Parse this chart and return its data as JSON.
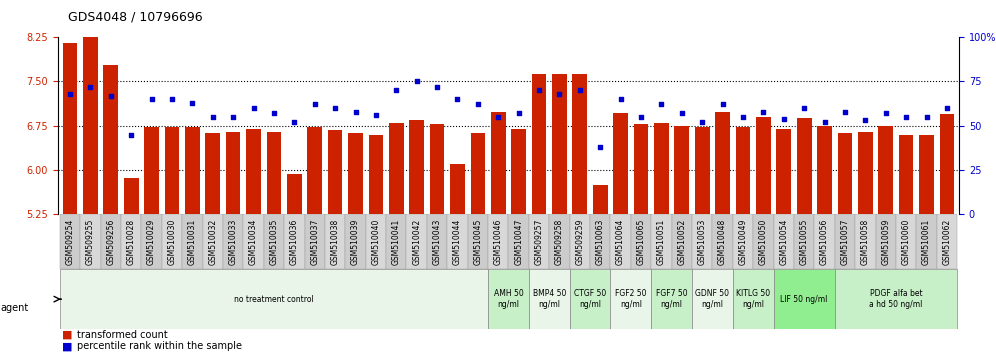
{
  "title": "GDS4048 / 10796696",
  "ylim_left": [
    5.25,
    8.25
  ],
  "ylim_right": [
    0,
    100
  ],
  "yticks_left": [
    5.25,
    6.0,
    6.75,
    7.5,
    8.25
  ],
  "yticks_right": [
    0,
    25,
    50,
    75,
    100
  ],
  "bar_color": "#CC2200",
  "dot_color": "#0000CC",
  "samples": [
    "GSM509254",
    "GSM509255",
    "GSM509256",
    "GSM510028",
    "GSM510029",
    "GSM510030",
    "GSM510031",
    "GSM510032",
    "GSM510033",
    "GSM510034",
    "GSM510035",
    "GSM510036",
    "GSM510037",
    "GSM510038",
    "GSM510039",
    "GSM510040",
    "GSM510041",
    "GSM510042",
    "GSM510043",
    "GSM510044",
    "GSM510045",
    "GSM510046",
    "GSM510047",
    "GSM509257",
    "GSM509258",
    "GSM509259",
    "GSM510063",
    "GSM510064",
    "GSM510065",
    "GSM510051",
    "GSM510052",
    "GSM510053",
    "GSM510048",
    "GSM510049",
    "GSM510050",
    "GSM510054",
    "GSM510055",
    "GSM510056",
    "GSM510057",
    "GSM510058",
    "GSM510059",
    "GSM510060",
    "GSM510061",
    "GSM510062"
  ],
  "bar_values": [
    8.15,
    8.35,
    7.78,
    5.86,
    6.73,
    6.73,
    6.72,
    6.62,
    6.65,
    6.7,
    6.65,
    5.93,
    6.72,
    6.68,
    6.62,
    6.6,
    6.8,
    6.85,
    6.78,
    6.1,
    6.63,
    6.98,
    6.7,
    7.62,
    7.62,
    7.62,
    5.75,
    6.97,
    6.78,
    6.8,
    6.75,
    6.72,
    6.98,
    6.72,
    6.9,
    6.7,
    6.88,
    6.75,
    6.62,
    6.65,
    6.75,
    6.6,
    6.6,
    6.95
  ],
  "dot_values": [
    68,
    72,
    67,
    45,
    65,
    65,
    63,
    55,
    55,
    60,
    57,
    52,
    62,
    60,
    58,
    56,
    70,
    75,
    72,
    65,
    62,
    55,
    57,
    70,
    68,
    70,
    38,
    65,
    55,
    62,
    57,
    52,
    62,
    55,
    58,
    54,
    60,
    52,
    58,
    53,
    57,
    55,
    55,
    60
  ],
  "groups": [
    {
      "label": "no treatment control",
      "start": 0,
      "end": 21,
      "color": "#e8f5e8"
    },
    {
      "label": "AMH 50\nng/ml",
      "start": 21,
      "end": 23,
      "color": "#c8f0c8"
    },
    {
      "label": "BMP4 50\nng/ml",
      "start": 23,
      "end": 25,
      "color": "#e8f5e8"
    },
    {
      "label": "CTGF 50\nng/ml",
      "start": 25,
      "end": 27,
      "color": "#c8f0c8"
    },
    {
      "label": "FGF2 50\nng/ml",
      "start": 27,
      "end": 29,
      "color": "#e8f5e8"
    },
    {
      "label": "FGF7 50\nng/ml",
      "start": 29,
      "end": 31,
      "color": "#c8f0c8"
    },
    {
      "label": "GDNF 50\nng/ml",
      "start": 31,
      "end": 33,
      "color": "#e8f5e8"
    },
    {
      "label": "KITLG 50\nng/ml",
      "start": 33,
      "end": 35,
      "color": "#c8f0c8"
    },
    {
      "label": "LIF 50 ng/ml",
      "start": 35,
      "end": 38,
      "color": "#90ee90"
    },
    {
      "label": "PDGF alfa bet\na hd 50 ng/ml",
      "start": 38,
      "end": 44,
      "color": "#c8f0c8"
    }
  ],
  "agent_label": "agent",
  "legend_bar": "transformed count",
  "legend_dot": "percentile rank within the sample",
  "gridline_y": [
    6.0,
    6.75,
    7.5
  ]
}
